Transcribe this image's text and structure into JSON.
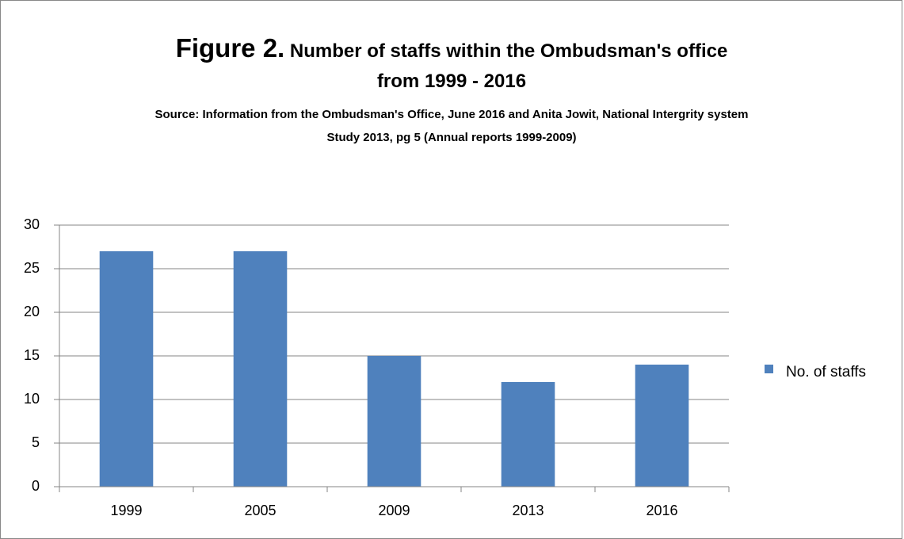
{
  "chart_data": {
    "type": "bar",
    "figure_label": "Figure 2.",
    "title": "Number of staffs within the Ombudsman's office from 1999 - 2016",
    "subtitle": "Source: Information from the Ombudsman's Office, June 2016 and Anita Jowit, National Intergrity system Study 2013, pg 5 (Annual reports 1999-2009)",
    "categories": [
      "1999",
      "2005",
      "2009",
      "2013",
      "2016"
    ],
    "series": [
      {
        "name": "No. of staffs",
        "color": "#4f81bd",
        "values": [
          27,
          27,
          15,
          12,
          14
        ]
      }
    ],
    "ylim": [
      0,
      30
    ],
    "yticks": [
      0,
      5,
      10,
      15,
      20,
      25,
      30
    ],
    "grid": true,
    "legend": "right"
  }
}
